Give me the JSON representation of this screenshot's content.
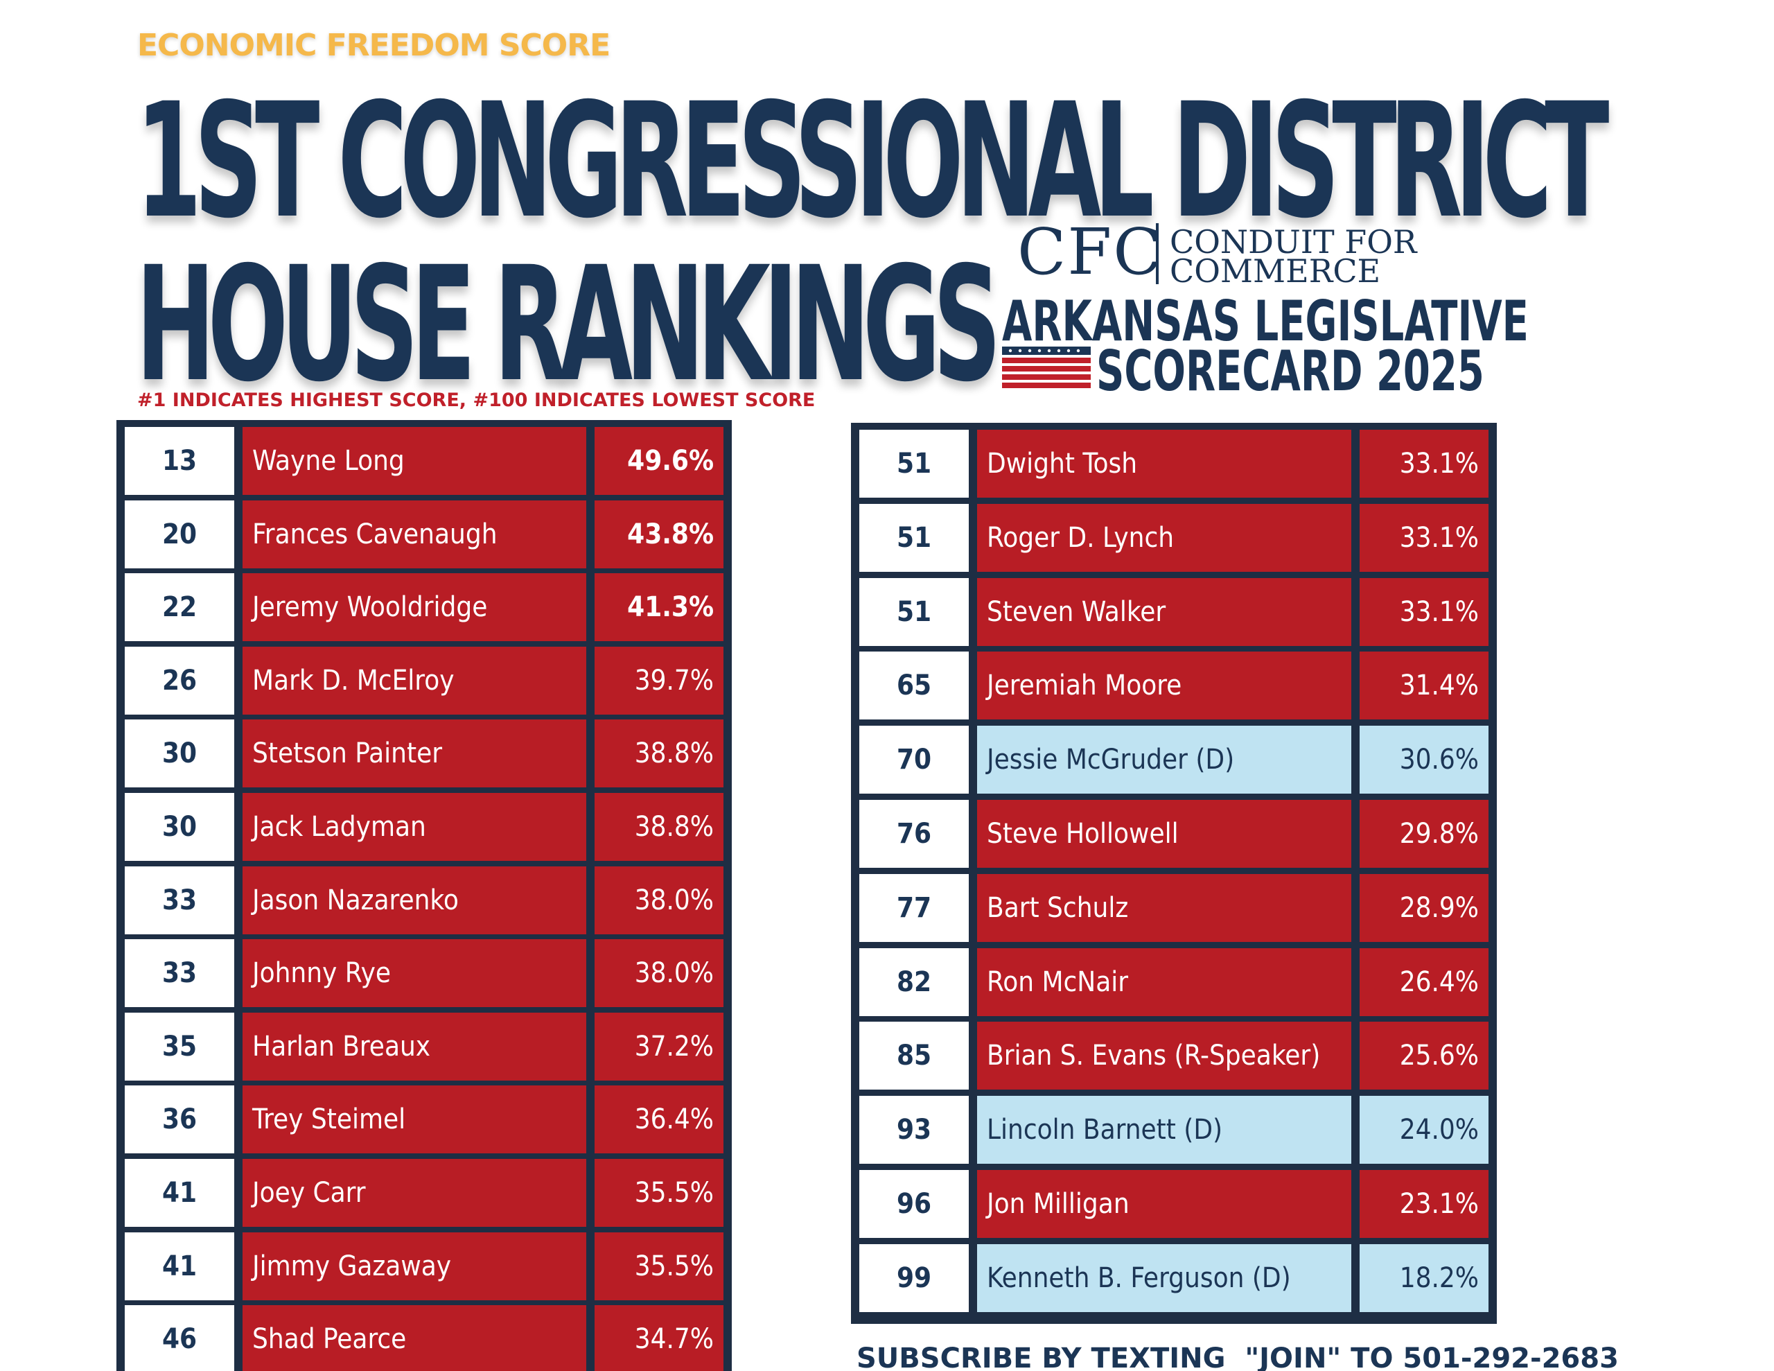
{
  "header": {
    "kicker": "ECONOMIC FREEDOM SCORE",
    "headline_line1": "1ST CONGRESSIONAL DISTRICT",
    "headline_line2": "HOUSE RANKINGS",
    "subnote": "#1 INDICATES HIGHEST SCORE, #100 INDICATES LOWEST SCORE"
  },
  "branding": {
    "logo_mark": "CFC",
    "logo_line1": "CONDUIT FOR",
    "logo_line2": "COMMERCE",
    "scorecard_line1": "ARKANSAS LEGISLATIVE",
    "scorecard_line2": "SCORECARD 2025"
  },
  "colors": {
    "navy": "#1b3555",
    "republican_red": "#b81d25",
    "democrat_blue": "#bfe3f2",
    "kicker_gold": "#f5b84a"
  },
  "left_table": [
    {
      "rank": "13",
      "name": "Wayne Long",
      "score": "49.6%",
      "party": "R",
      "bold": true
    },
    {
      "rank": "20",
      "name": "Frances Cavenaugh",
      "score": "43.8%",
      "party": "R",
      "bold": true
    },
    {
      "rank": "22",
      "name": "Jeremy Wooldridge",
      "score": "41.3%",
      "party": "R",
      "bold": true
    },
    {
      "rank": "26",
      "name": "Mark D. McElroy",
      "score": "39.7%",
      "party": "R"
    },
    {
      "rank": "30",
      "name": "Stetson Painter",
      "score": "38.8%",
      "party": "R"
    },
    {
      "rank": "30",
      "name": "Jack Ladyman",
      "score": "38.8%",
      "party": "R"
    },
    {
      "rank": "33",
      "name": "Jason Nazarenko",
      "score": "38.0%",
      "party": "R"
    },
    {
      "rank": "33",
      "name": "Johnny Rye",
      "score": "38.0%",
      "party": "R"
    },
    {
      "rank": "35",
      "name": "Harlan Breaux",
      "score": "37.2%",
      "party": "R"
    },
    {
      "rank": "36",
      "name": "Trey Steimel",
      "score": "36.4%",
      "party": "R"
    },
    {
      "rank": "41",
      "name": "Joey Carr",
      "score": "35.5%",
      "party": "R"
    },
    {
      "rank": "41",
      "name": "Jimmy Gazaway",
      "score": "35.5%",
      "party": "R"
    },
    {
      "rank": "46",
      "name": "Shad Pearce",
      "score": "34.7%",
      "party": "R"
    }
  ],
  "right_table": [
    {
      "rank": "51",
      "name": "Dwight Tosh",
      "score": "33.1%",
      "party": "R"
    },
    {
      "rank": "51",
      "name": "Roger D. Lynch",
      "score": "33.1%",
      "party": "R"
    },
    {
      "rank": "51",
      "name": "Steven Walker",
      "score": "33.1%",
      "party": "R"
    },
    {
      "rank": "65",
      "name": "Jeremiah Moore",
      "score": "31.4%",
      "party": "R"
    },
    {
      "rank": "70",
      "name": "Jessie McGruder (D)",
      "score": "30.6%",
      "party": "D"
    },
    {
      "rank": "76",
      "name": "Steve Hollowell",
      "score": "29.8%",
      "party": "R"
    },
    {
      "rank": "77",
      "name": "Bart Schulz",
      "score": "28.9%",
      "party": "R"
    },
    {
      "rank": "82",
      "name": "Ron McNair",
      "score": "26.4%",
      "party": "R"
    },
    {
      "rank": "85",
      "name": "Brian S. Evans (R-Speaker)",
      "score": "25.6%",
      "party": "R"
    },
    {
      "rank": "93",
      "name": "Lincoln Barnett (D)",
      "score": "24.0%",
      "party": "D"
    },
    {
      "rank": "96",
      "name": "Jon Milligan",
      "score": "23.1%",
      "party": "R"
    },
    {
      "rank": "99",
      "name": "Kenneth B. Ferguson (D)",
      "score": "18.2%",
      "party": "D"
    }
  ],
  "footer": {
    "subscribe": "SUBSCRIBE BY TEXTING  \"JOIN\" TO 501-292-2683"
  }
}
